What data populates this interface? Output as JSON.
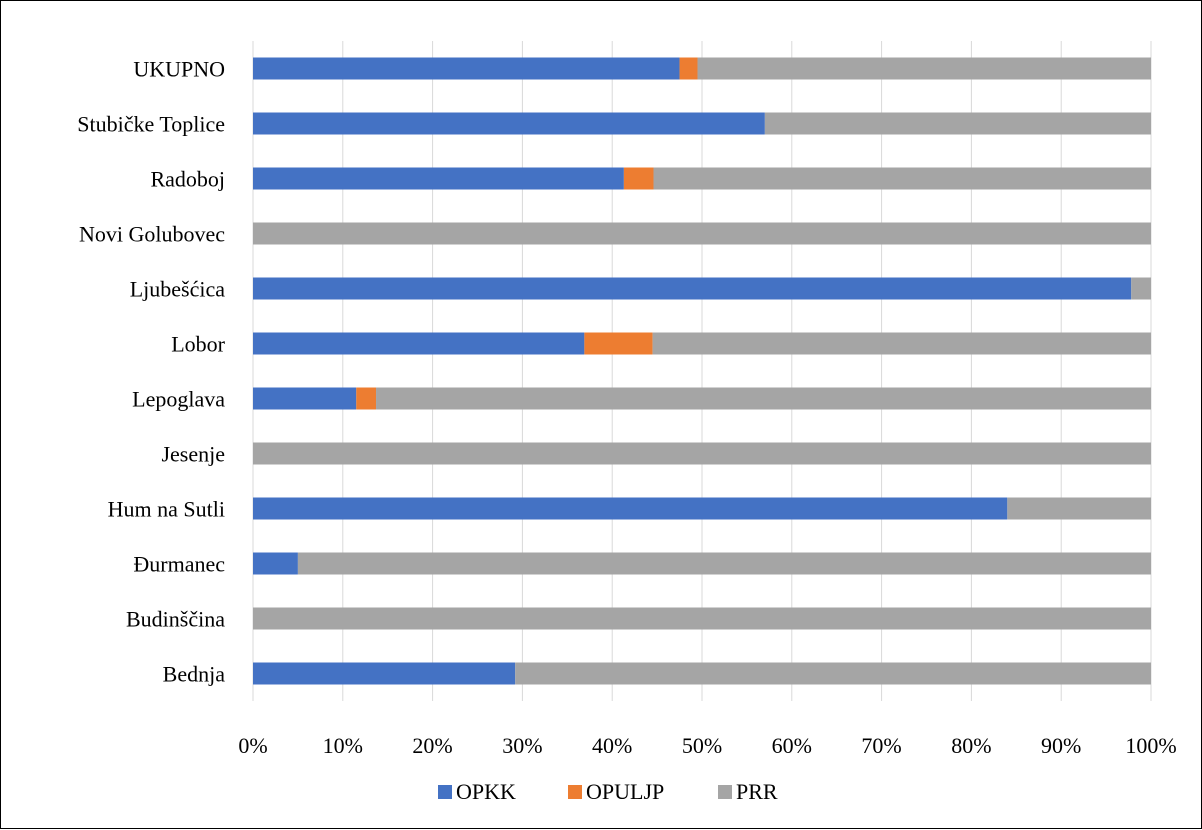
{
  "chart_data": {
    "type": "bar",
    "orientation": "horizontal",
    "stacked": "percent",
    "title": "",
    "xlabel": "",
    "ylabel": "",
    "xlim": [
      0,
      100
    ],
    "grid": true,
    "legend_position": "bottom",
    "categories": [
      "UKUPNO",
      "Stubičke Toplice",
      "Radoboj",
      "Novi Golubovec",
      "Ljubešćica",
      "Lobor",
      "Lepoglava",
      "Jesenje",
      "Hum na Sutli",
      "Đurmanec",
      "Budinščina",
      "Bednja"
    ],
    "x_ticks": [
      "0%",
      "10%",
      "20%",
      "30%",
      "40%",
      "50%",
      "60%",
      "70%",
      "80%",
      "90%",
      "100%"
    ],
    "series": [
      {
        "name": "OPKK",
        "color": "#4472C4",
        "values": [
          47.5,
          57,
          41.3,
          0,
          97.8,
          36.9,
          11.5,
          0,
          84,
          5,
          0,
          29.2
        ]
      },
      {
        "name": "OPULJP",
        "color": "#ED7D31",
        "values": [
          2.0,
          0,
          3.3,
          0,
          0,
          7.6,
          2.2,
          0,
          0,
          0,
          0,
          0
        ]
      },
      {
        "name": "PRR",
        "color": "#A5A5A5",
        "values": [
          50.5,
          43,
          55.4,
          100,
          2.2,
          55.5,
          86.3,
          100,
          16,
          95,
          100,
          70.8
        ]
      }
    ]
  }
}
